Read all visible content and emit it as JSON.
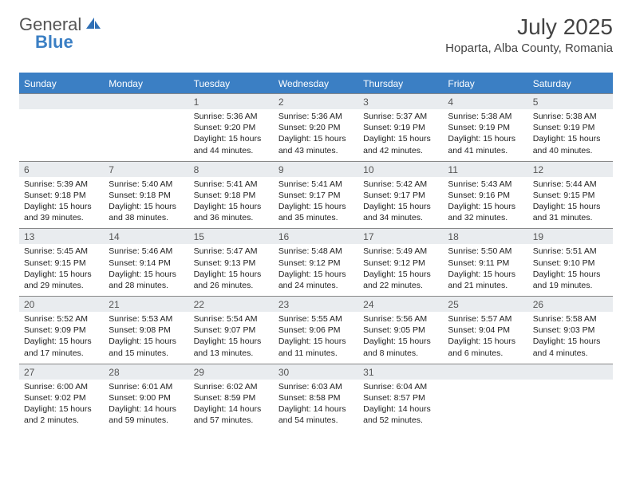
{
  "brand": {
    "name1": "General",
    "name2": "Blue"
  },
  "title": "July 2025",
  "location": "Hoparta, Alba County, Romania",
  "colors": {
    "accent": "#3b7fc4",
    "header_bg": "#3b7fc4",
    "daynum_bg": "#e9ecef",
    "rule": "#888888",
    "text": "#333333"
  },
  "days_of_week": [
    "Sunday",
    "Monday",
    "Tuesday",
    "Wednesday",
    "Thursday",
    "Friday",
    "Saturday"
  ],
  "weeks": [
    [
      null,
      null,
      {
        "n": "1",
        "sunrise": "5:36 AM",
        "sunset": "9:20 PM",
        "daylight": "15 hours and 44 minutes."
      },
      {
        "n": "2",
        "sunrise": "5:36 AM",
        "sunset": "9:20 PM",
        "daylight": "15 hours and 43 minutes."
      },
      {
        "n": "3",
        "sunrise": "5:37 AM",
        "sunset": "9:19 PM",
        "daylight": "15 hours and 42 minutes."
      },
      {
        "n": "4",
        "sunrise": "5:38 AM",
        "sunset": "9:19 PM",
        "daylight": "15 hours and 41 minutes."
      },
      {
        "n": "5",
        "sunrise": "5:38 AM",
        "sunset": "9:19 PM",
        "daylight": "15 hours and 40 minutes."
      }
    ],
    [
      {
        "n": "6",
        "sunrise": "5:39 AM",
        "sunset": "9:18 PM",
        "daylight": "15 hours and 39 minutes."
      },
      {
        "n": "7",
        "sunrise": "5:40 AM",
        "sunset": "9:18 PM",
        "daylight": "15 hours and 38 minutes."
      },
      {
        "n": "8",
        "sunrise": "5:41 AM",
        "sunset": "9:18 PM",
        "daylight": "15 hours and 36 minutes."
      },
      {
        "n": "9",
        "sunrise": "5:41 AM",
        "sunset": "9:17 PM",
        "daylight": "15 hours and 35 minutes."
      },
      {
        "n": "10",
        "sunrise": "5:42 AM",
        "sunset": "9:17 PM",
        "daylight": "15 hours and 34 minutes."
      },
      {
        "n": "11",
        "sunrise": "5:43 AM",
        "sunset": "9:16 PM",
        "daylight": "15 hours and 32 minutes."
      },
      {
        "n": "12",
        "sunrise": "5:44 AM",
        "sunset": "9:15 PM",
        "daylight": "15 hours and 31 minutes."
      }
    ],
    [
      {
        "n": "13",
        "sunrise": "5:45 AM",
        "sunset": "9:15 PM",
        "daylight": "15 hours and 29 minutes."
      },
      {
        "n": "14",
        "sunrise": "5:46 AM",
        "sunset": "9:14 PM",
        "daylight": "15 hours and 28 minutes."
      },
      {
        "n": "15",
        "sunrise": "5:47 AM",
        "sunset": "9:13 PM",
        "daylight": "15 hours and 26 minutes."
      },
      {
        "n": "16",
        "sunrise": "5:48 AM",
        "sunset": "9:12 PM",
        "daylight": "15 hours and 24 minutes."
      },
      {
        "n": "17",
        "sunrise": "5:49 AM",
        "sunset": "9:12 PM",
        "daylight": "15 hours and 22 minutes."
      },
      {
        "n": "18",
        "sunrise": "5:50 AM",
        "sunset": "9:11 PM",
        "daylight": "15 hours and 21 minutes."
      },
      {
        "n": "19",
        "sunrise": "5:51 AM",
        "sunset": "9:10 PM",
        "daylight": "15 hours and 19 minutes."
      }
    ],
    [
      {
        "n": "20",
        "sunrise": "5:52 AM",
        "sunset": "9:09 PM",
        "daylight": "15 hours and 17 minutes."
      },
      {
        "n": "21",
        "sunrise": "5:53 AM",
        "sunset": "9:08 PM",
        "daylight": "15 hours and 15 minutes."
      },
      {
        "n": "22",
        "sunrise": "5:54 AM",
        "sunset": "9:07 PM",
        "daylight": "15 hours and 13 minutes."
      },
      {
        "n": "23",
        "sunrise": "5:55 AM",
        "sunset": "9:06 PM",
        "daylight": "15 hours and 11 minutes."
      },
      {
        "n": "24",
        "sunrise": "5:56 AM",
        "sunset": "9:05 PM",
        "daylight": "15 hours and 8 minutes."
      },
      {
        "n": "25",
        "sunrise": "5:57 AM",
        "sunset": "9:04 PM",
        "daylight": "15 hours and 6 minutes."
      },
      {
        "n": "26",
        "sunrise": "5:58 AM",
        "sunset": "9:03 PM",
        "daylight": "15 hours and 4 minutes."
      }
    ],
    [
      {
        "n": "27",
        "sunrise": "6:00 AM",
        "sunset": "9:02 PM",
        "daylight": "15 hours and 2 minutes."
      },
      {
        "n": "28",
        "sunrise": "6:01 AM",
        "sunset": "9:00 PM",
        "daylight": "14 hours and 59 minutes."
      },
      {
        "n": "29",
        "sunrise": "6:02 AM",
        "sunset": "8:59 PM",
        "daylight": "14 hours and 57 minutes."
      },
      {
        "n": "30",
        "sunrise": "6:03 AM",
        "sunset": "8:58 PM",
        "daylight": "14 hours and 54 minutes."
      },
      {
        "n": "31",
        "sunrise": "6:04 AM",
        "sunset": "8:57 PM",
        "daylight": "14 hours and 52 minutes."
      },
      null,
      null
    ]
  ],
  "labels": {
    "sunrise": "Sunrise:",
    "sunset": "Sunset:",
    "daylight": "Daylight:"
  }
}
